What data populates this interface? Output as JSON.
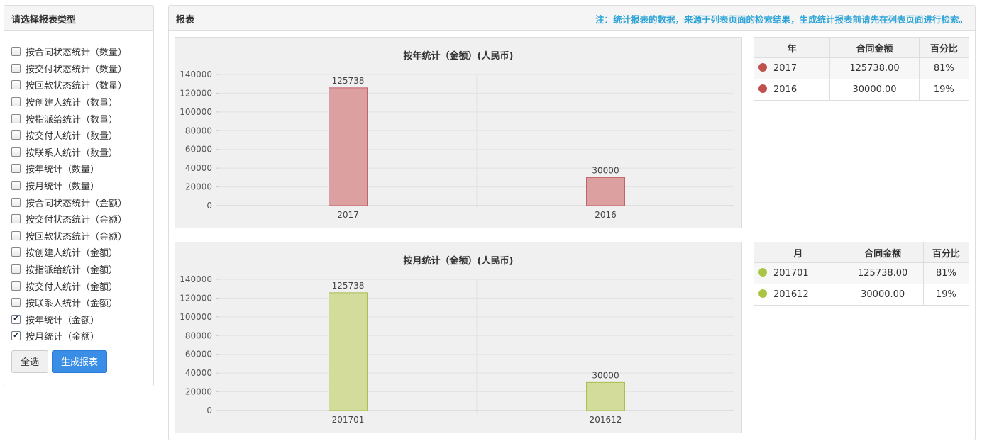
{
  "left_panel": {
    "title": "请选择报表类型",
    "options": [
      {
        "label": "按合同状态统计（数量）",
        "checked": false
      },
      {
        "label": "按交付状态统计（数量）",
        "checked": false
      },
      {
        "label": "按回款状态统计（数量）",
        "checked": false
      },
      {
        "label": "按创建人统计（数量）",
        "checked": false
      },
      {
        "label": "按指派给统计（数量）",
        "checked": false
      },
      {
        "label": "按交付人统计（数量）",
        "checked": false
      },
      {
        "label": "按联系人统计（数量）",
        "checked": false
      },
      {
        "label": "按年统计（数量）",
        "checked": false
      },
      {
        "label": "按月统计（数量）",
        "checked": false
      },
      {
        "label": "按合同状态统计（金额）",
        "checked": false
      },
      {
        "label": "按交付状态统计（金额）",
        "checked": false
      },
      {
        "label": "按回款状态统计（金额）",
        "checked": false
      },
      {
        "label": "按创建人统计（金额）",
        "checked": false
      },
      {
        "label": "按指派给统计（金额）",
        "checked": false
      },
      {
        "label": "按交付人统计（金额）",
        "checked": false
      },
      {
        "label": "按联系人统计（金额）",
        "checked": false
      },
      {
        "label": "按年统计（金额）",
        "checked": true
      },
      {
        "label": "按月统计（金额）",
        "checked": true
      }
    ],
    "select_all_label": "全选",
    "generate_label": "生成报表"
  },
  "right_panel": {
    "title": "报表",
    "note": "注：统计报表的数据，来源于列表页面的检索结果，生成统计报表前请先在列表页面进行检索。"
  },
  "reports": [
    {
      "table": {
        "headers": [
          "年",
          "合同金额",
          "百分比"
        ],
        "rows": [
          {
            "label": "2017",
            "amount": "125738.00",
            "percent": "81%"
          },
          {
            "label": "2016",
            "amount": "30000.00",
            "percent": "19%"
          }
        ]
      }
    },
    {
      "table": {
        "headers": [
          "月",
          "合同金额",
          "百分比"
        ],
        "rows": [
          {
            "label": "201701",
            "amount": "125738.00",
            "percent": "81%"
          },
          {
            "label": "201612",
            "amount": "30000.00",
            "percent": "19%"
          }
        ]
      }
    }
  ],
  "chart_data": [
    {
      "type": "bar",
      "title": "按年统计（金额）(人民币)",
      "categories": [
        "2017",
        "2016"
      ],
      "values": [
        125738,
        30000
      ],
      "ylim": [
        0,
        140000
      ],
      "yticks": [
        "0",
        "20000",
        "40000",
        "60000",
        "80000",
        "100000",
        "120000",
        "140000"
      ],
      "xlabel": "",
      "ylabel": "",
      "grid": true,
      "bar_fill": "#dca0a0",
      "bar_stroke": "#c0646a",
      "dot_color": "#c0504d"
    },
    {
      "type": "bar",
      "title": "按月统计（金额）(人民币)",
      "categories": [
        "201701",
        "201612"
      ],
      "values": [
        125738,
        30000
      ],
      "ylim": [
        0,
        140000
      ],
      "yticks": [
        "0",
        "20000",
        "40000",
        "60000",
        "80000",
        "100000",
        "120000",
        "140000"
      ],
      "xlabel": "",
      "ylabel": "",
      "grid": true,
      "bar_fill": "#d3dc9a",
      "bar_stroke": "#a9c04e",
      "dot_color": "#aac444"
    }
  ]
}
